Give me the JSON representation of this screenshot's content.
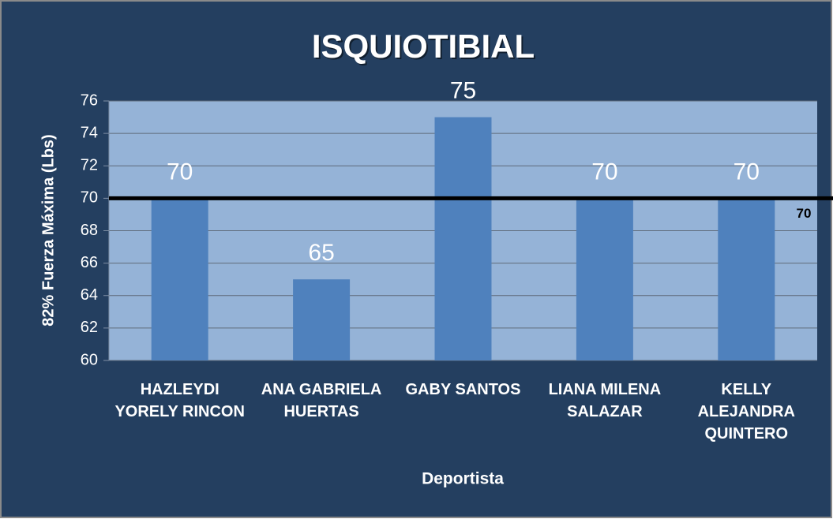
{
  "chart_data": {
    "type": "bar",
    "title": "ISQUIOTIBIAL",
    "x_label": "Deportista",
    "y_label": "82%  Fuerza Máxima (Lbs)",
    "categories": [
      "HAZLEYDI YORELY RINCON",
      "ANA GABRIELA HUERTAS",
      "GABY SANTOS",
      "LIANA MILENA SALAZAR",
      "KELLY ALEJANDRA QUINTERO"
    ],
    "values": [
      70,
      65,
      75,
      70,
      70
    ],
    "color": "#4f81bd",
    "ylim": [
      60,
      76
    ],
    "yticks": [
      60,
      62,
      64,
      66,
      68,
      70,
      72,
      74,
      76
    ],
    "grid": true,
    "reference_line": {
      "value": 70,
      "color": "#000000"
    }
  }
}
